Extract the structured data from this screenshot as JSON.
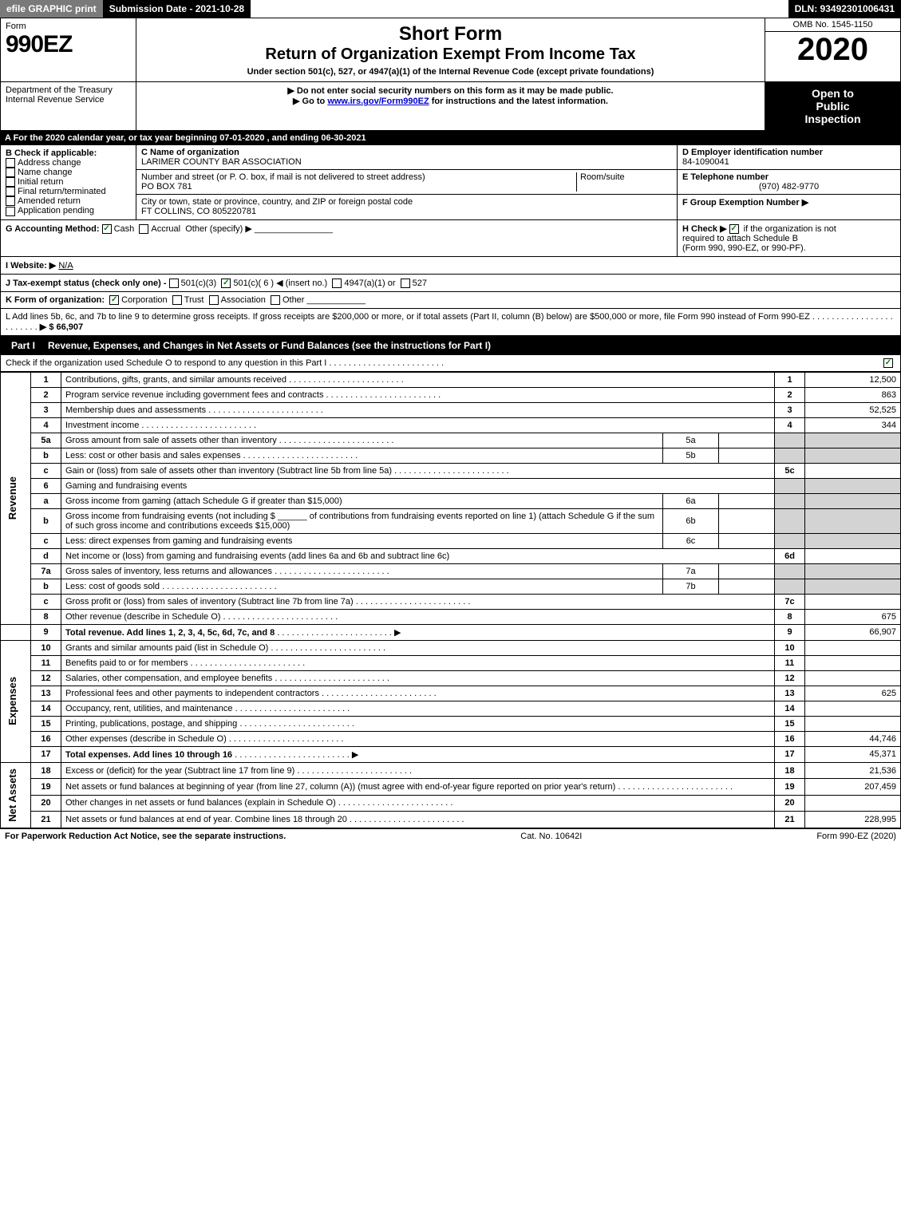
{
  "topbar": {
    "efile": "efile GRAPHIC print",
    "submission": "Submission Date - 2021-10-28",
    "dln": "DLN: 93492301006431"
  },
  "header": {
    "form_word": "Form",
    "form_number": "990EZ",
    "short_form": "Short Form",
    "title": "Return of Organization Exempt From Income Tax",
    "subtitle": "Under section 501(c), 527, or 4947(a)(1) of the Internal Revenue Code (except private foundations)",
    "omb": "OMB No. 1545-1150",
    "year": "2020",
    "dept1": "Department of the Treasury",
    "dept2": "Internal Revenue Service",
    "instr1": "▶ Do not enter social security numbers on this form as it may be made public.",
    "instr2_pre": "▶ Go to ",
    "instr2_link": "www.irs.gov/Form990EZ",
    "instr2_post": " for instructions and the latest information.",
    "open1": "Open to",
    "open2": "Public",
    "open3": "Inspection"
  },
  "section_a": "A For the 2020 calendar year, or tax year beginning 07-01-2020 , and ending 06-30-2021",
  "section_b": {
    "label": "B Check if applicable:",
    "opts": [
      "Address change",
      "Name change",
      "Initial return",
      "Final return/terminated",
      "Amended return",
      "Application pending"
    ]
  },
  "section_c": {
    "label": "C Name of organization",
    "name": "LARIMER COUNTY BAR ASSOCIATION",
    "addr_label": "Number and street (or P. O. box, if mail is not delivered to street address)",
    "room_label": "Room/suite",
    "addr": "PO BOX 781",
    "city_label": "City or town, state or province, country, and ZIP or foreign postal code",
    "city": "FT COLLINS, CO  805220781"
  },
  "section_d": {
    "label": "D Employer identification number",
    "value": "84-1090041"
  },
  "section_e": {
    "label": "E Telephone number",
    "value": "(970) 482-9770"
  },
  "section_f": {
    "label": "F Group Exemption Number  ▶"
  },
  "section_g": {
    "label": "G Accounting Method:",
    "cash": "Cash",
    "accrual": "Accrual",
    "other": "Other (specify) ▶"
  },
  "section_h": {
    "label": "H Check ▶",
    "text1": "if the organization is not",
    "text2": "required to attach Schedule B",
    "text3": "(Form 990, 990-EZ, or 990-PF)."
  },
  "section_i": {
    "label": "I Website: ▶",
    "value": "N/A"
  },
  "section_j": {
    "label": "J Tax-exempt status (check only one) - ",
    "o1": "501(c)(3)",
    "o2": "501(c)( 6 ) ◀ (insert no.)",
    "o3": "4947(a)(1) or",
    "o4": "527"
  },
  "section_k": {
    "label": "K Form of organization:",
    "o1": "Corporation",
    "o2": "Trust",
    "o3": "Association",
    "o4": "Other"
  },
  "section_l": {
    "text": "L Add lines 5b, 6c, and 7b to line 9 to determine gross receipts. If gross receipts are $200,000 or more, or if total assets (Part II, column (B) below) are $500,000 or more, file Form 990 instead of Form 990-EZ",
    "value": "▶ $ 66,907"
  },
  "part1": {
    "label": "Part I",
    "title": "Revenue, Expenses, and Changes in Net Assets or Fund Balances (see the instructions for Part I)",
    "check_text": "Check if the organization used Schedule O to respond to any question in this Part I"
  },
  "side": {
    "revenue": "Revenue",
    "expenses": "Expenses",
    "netassets": "Net Assets"
  },
  "lines": {
    "1": {
      "n": "1",
      "t": "Contributions, gifts, grants, and similar amounts received",
      "r": "1",
      "a": "12,500"
    },
    "2": {
      "n": "2",
      "t": "Program service revenue including government fees and contracts",
      "r": "2",
      "a": "863"
    },
    "3": {
      "n": "3",
      "t": "Membership dues and assessments",
      "r": "3",
      "a": "52,525"
    },
    "4": {
      "n": "4",
      "t": "Investment income",
      "r": "4",
      "a": "344"
    },
    "5a": {
      "n": "5a",
      "t": "Gross amount from sale of assets other than inventory",
      "sub": "5a"
    },
    "5b": {
      "n": "b",
      "t": "Less: cost or other basis and sales expenses",
      "sub": "5b"
    },
    "5c": {
      "n": "c",
      "t": "Gain or (loss) from sale of assets other than inventory (Subtract line 5b from line 5a)",
      "r": "5c"
    },
    "6": {
      "n": "6",
      "t": "Gaming and fundraising events"
    },
    "6a": {
      "n": "a",
      "t": "Gross income from gaming (attach Schedule G if greater than $15,000)",
      "sub": "6a"
    },
    "6b": {
      "n": "b",
      "t1": "Gross income from fundraising events (not including $",
      "t2": "of contributions from fundraising events reported on line 1) (attach Schedule G if the sum of such gross income and contributions exceeds $15,000)",
      "sub": "6b"
    },
    "6c": {
      "n": "c",
      "t": "Less: direct expenses from gaming and fundraising events",
      "sub": "6c"
    },
    "6d": {
      "n": "d",
      "t": "Net income or (loss) from gaming and fundraising events (add lines 6a and 6b and subtract line 6c)",
      "r": "6d"
    },
    "7a": {
      "n": "7a",
      "t": "Gross sales of inventory, less returns and allowances",
      "sub": "7a"
    },
    "7b": {
      "n": "b",
      "t": "Less: cost of goods sold",
      "sub": "7b"
    },
    "7c": {
      "n": "c",
      "t": "Gross profit or (loss) from sales of inventory (Subtract line 7b from line 7a)",
      "r": "7c"
    },
    "8": {
      "n": "8",
      "t": "Other revenue (describe in Schedule O)",
      "r": "8",
      "a": "675"
    },
    "9": {
      "n": "9",
      "t": "Total revenue. Add lines 1, 2, 3, 4, 5c, 6d, 7c, and 8",
      "r": "9",
      "a": "66,907"
    },
    "10": {
      "n": "10",
      "t": "Grants and similar amounts paid (list in Schedule O)",
      "r": "10"
    },
    "11": {
      "n": "11",
      "t": "Benefits paid to or for members",
      "r": "11"
    },
    "12": {
      "n": "12",
      "t": "Salaries, other compensation, and employee benefits",
      "r": "12"
    },
    "13": {
      "n": "13",
      "t": "Professional fees and other payments to independent contractors",
      "r": "13",
      "a": "625"
    },
    "14": {
      "n": "14",
      "t": "Occupancy, rent, utilities, and maintenance",
      "r": "14"
    },
    "15": {
      "n": "15",
      "t": "Printing, publications, postage, and shipping",
      "r": "15"
    },
    "16": {
      "n": "16",
      "t": "Other expenses (describe in Schedule O)",
      "r": "16",
      "a": "44,746"
    },
    "17": {
      "n": "17",
      "t": "Total expenses. Add lines 10 through 16",
      "r": "17",
      "a": "45,371"
    },
    "18": {
      "n": "18",
      "t": "Excess or (deficit) for the year (Subtract line 17 from line 9)",
      "r": "18",
      "a": "21,536"
    },
    "19": {
      "n": "19",
      "t": "Net assets or fund balances at beginning of year (from line 27, column (A)) (must agree with end-of-year figure reported on prior year's return)",
      "r": "19",
      "a": "207,459"
    },
    "20": {
      "n": "20",
      "t": "Other changes in net assets or fund balances (explain in Schedule O)",
      "r": "20"
    },
    "21": {
      "n": "21",
      "t": "Net assets or fund balances at end of year. Combine lines 18 through 20",
      "r": "21",
      "a": "228,995"
    }
  },
  "footer": {
    "left": "For Paperwork Reduction Act Notice, see the separate instructions.",
    "mid": "Cat. No. 10642I",
    "right": "Form 990-EZ (2020)"
  }
}
